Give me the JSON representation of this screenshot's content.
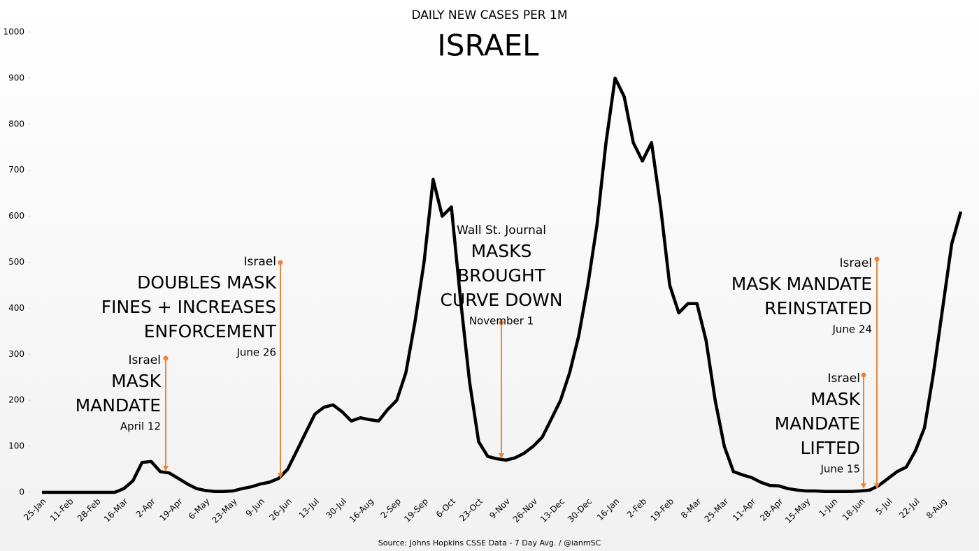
{
  "chart_data": {
    "type": "line",
    "title": "DAILY NEW CASES PER 1M",
    "subtitle": "ISRAEL",
    "source": "Source: Johns Hopkins CSSE Data - 7 Day Avg. / @ianmSC",
    "color": "#000000",
    "annotation_color": "#e8863a",
    "grid": false,
    "ylim": [
      0,
      1000
    ],
    "yticks": [
      0,
      100,
      200,
      300,
      400,
      500,
      600,
      700,
      800,
      900,
      1000
    ],
    "categories": [
      "25-Jan",
      null,
      null,
      "11-Feb",
      null,
      null,
      "28-Feb",
      null,
      null,
      "16-Mar",
      null,
      null,
      "2-Apr",
      null,
      null,
      "19-Apr",
      null,
      null,
      "6-May",
      null,
      null,
      "23-May",
      null,
      null,
      "9-Jun",
      null,
      null,
      "26-Jun",
      null,
      null,
      "13-Jul",
      null,
      null,
      "30-Jul",
      null,
      null,
      "16-Aug",
      null,
      null,
      "2-Sep",
      null,
      null,
      "19-Sep",
      null,
      null,
      "6-Oct",
      null,
      null,
      "23-Oct",
      null,
      null,
      "9-Nov",
      null,
      null,
      "26-Nov",
      null,
      null,
      "13-Dec",
      null,
      null,
      "30-Dec",
      null,
      null,
      "16-Jan",
      null,
      null,
      "2-Feb",
      null,
      null,
      "19-Feb",
      null,
      null,
      "8-Mar",
      null,
      null,
      "25-Mar",
      null,
      null,
      "11-Apr",
      null,
      null,
      "28-Apr",
      null,
      null,
      "15-May",
      null,
      null,
      "1-Jun",
      null,
      null,
      "18-Jun",
      null,
      null,
      "5-Jul",
      null,
      null,
      "22-Jul",
      null,
      null,
      "8-Aug",
      null,
      null
    ],
    "values": [
      0,
      0,
      0,
      0,
      0,
      0,
      0,
      0,
      0,
      8,
      25,
      65,
      67,
      45,
      42,
      30,
      18,
      8,
      4,
      2,
      2,
      3,
      8,
      12,
      18,
      22,
      30,
      50,
      90,
      130,
      170,
      185,
      190,
      175,
      155,
      162,
      158,
      155,
      180,
      200,
      260,
      370,
      500,
      680,
      600,
      620,
      420,
      240,
      110,
      78,
      73,
      70,
      75,
      85,
      100,
      120,
      160,
      200,
      260,
      340,
      450,
      580,
      760,
      900,
      860,
      760,
      720,
      760,
      620,
      450,
      390,
      410,
      410,
      330,
      200,
      100,
      45,
      38,
      32,
      22,
      15,
      14,
      8,
      5,
      3,
      3,
      2,
      2,
      2,
      2,
      3,
      5,
      15,
      30,
      45,
      55,
      90,
      140,
      260,
      400,
      540,
      610
    ],
    "annotations": [
      {
        "pre": "Israel",
        "text": [
          "MASK",
          "MANDATE"
        ],
        "date": "April 12"
      },
      {
        "pre": "Israel",
        "text": [
          "DOUBLES MASK",
          "FINES + INCREASES",
          "ENFORCEMENT"
        ],
        "date": "June 26"
      },
      {
        "pre": "Wall St. Journal",
        "text": [
          "MASKS",
          "BROUGHT",
          "CURVE DOWN"
        ],
        "date": "November 1"
      },
      {
        "pre": "Israel",
        "text": [
          "MASK MANDATE",
          "REINSTATED"
        ],
        "date": "June 24"
      },
      {
        "pre": "Israel",
        "text": [
          "MASK",
          "MANDATE",
          "LIFTED"
        ],
        "date": "June 15"
      }
    ]
  }
}
